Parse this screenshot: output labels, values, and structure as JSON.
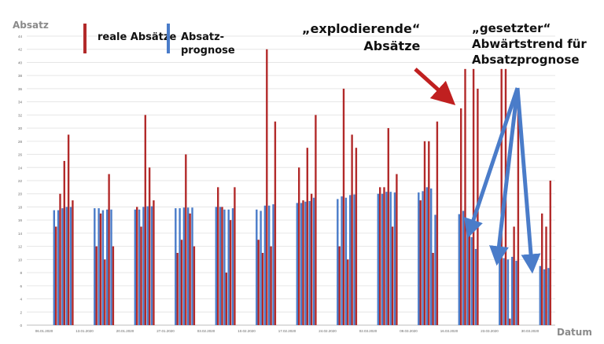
{
  "chart_data": {
    "type": "bar",
    "ylabel": "Absatz",
    "xlabel": "Datum",
    "ylim": [
      0,
      44
    ],
    "y_ticks": [
      0,
      2,
      4,
      6,
      8,
      10,
      12,
      14,
      16,
      18,
      20,
      22,
      24,
      26,
      28,
      30,
      32,
      34,
      36,
      38,
      40,
      42,
      44
    ],
    "grid": true,
    "legend": "top-left",
    "x_tick_labels": [
      "06.01.2020",
      "13.01.2020",
      "20.01.2020",
      "27.01.2020",
      "03.02.2020",
      "10.02.2020",
      "17.02.2020",
      "24.02.2020",
      "02.03.2020",
      "09.03.2020",
      "16.03.2020",
      "23.03.2020",
      "30.03.2020"
    ],
    "series": [
      {
        "name": "reale Absätze",
        "color": "#b22a2a",
        "values": [
          15,
          20,
          25,
          29,
          19,
          12,
          17,
          10,
          23,
          12,
          18,
          15,
          32,
          24,
          19,
          11,
          13,
          26,
          17,
          12,
          21,
          18,
          8,
          16,
          21,
          13,
          11,
          42,
          12,
          31,
          24,
          19,
          27,
          20,
          32,
          12,
          36,
          10,
          29,
          27,
          21,
          21,
          30,
          15,
          23,
          19,
          28,
          28,
          11,
          31,
          33,
          39,
          14,
          39,
          36,
          39,
          39,
          1,
          15,
          34,
          17,
          15,
          22
        ]
      },
      {
        "name": "Absatz-\nprognose",
        "color": "#4a7cc9",
        "values": [
          17.5,
          17.5,
          17.8,
          18.0,
          18.0,
          17.8,
          17.8,
          17.5,
          17.6,
          17.6,
          17.6,
          17.6,
          18.0,
          18.1,
          18.1,
          17.8,
          17.8,
          17.9,
          17.9,
          17.9,
          18.0,
          18.0,
          17.6,
          17.6,
          17.8,
          17.6,
          17.4,
          18.2,
          18.2,
          18.4,
          18.6,
          18.6,
          18.8,
          18.9,
          19.4,
          19.2,
          19.6,
          19.4,
          19.8,
          19.9,
          20.0,
          20.0,
          20.3,
          20.3,
          20.2,
          20.2,
          20.4,
          21.0,
          20.8,
          16.8,
          16.9,
          17.4,
          14.0,
          13.4,
          11.6,
          10.4,
          10.2,
          10.0,
          10.4,
          9.8,
          9.0,
          8.5,
          8.7
        ]
      }
    ]
  },
  "annotations": {
    "exploding": "„explodierende“\nAbsätze",
    "downtrend": "„gesetzter“\nAbwärtstrend für\nAbsatzprognose"
  }
}
